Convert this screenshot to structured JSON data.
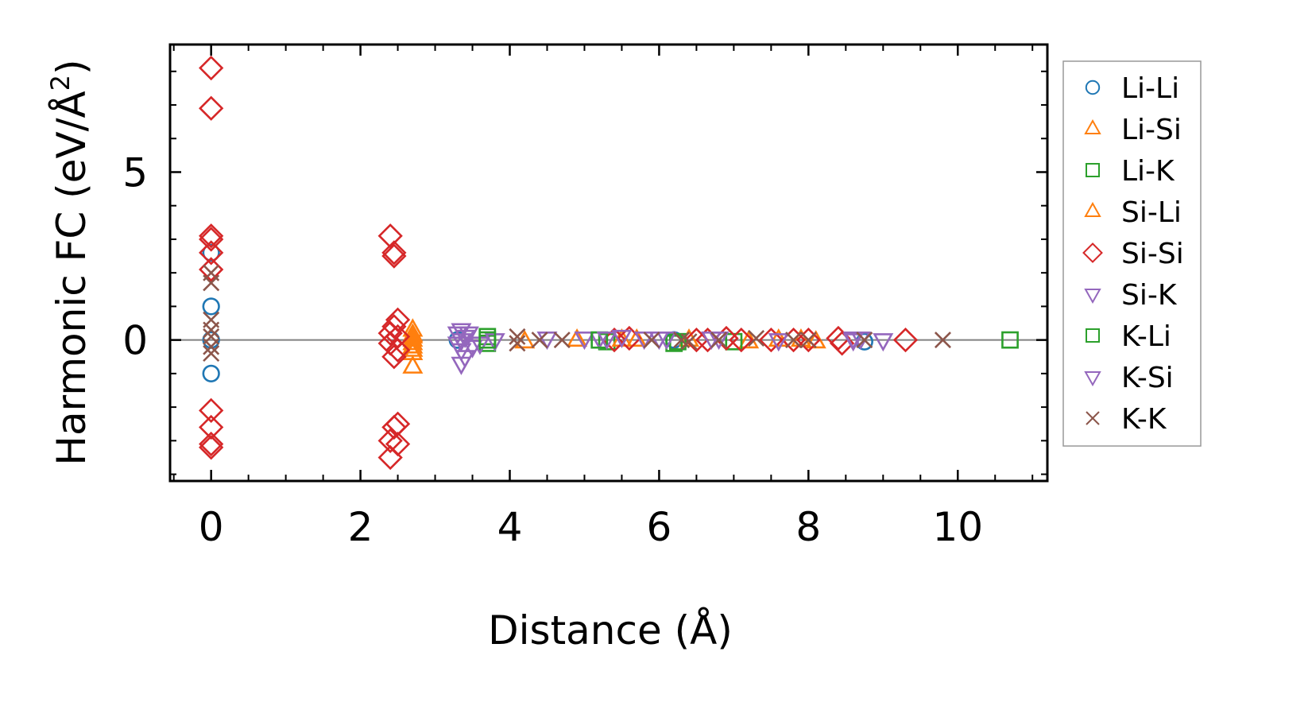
{
  "chart_data": {
    "type": "scatter",
    "xlabel": "Distance (Å)",
    "ylabel": "Harmonic FC (eV/Å²)",
    "ylabel_main": "Harmonic FC (eV/Å",
    "ylabel_sup": "2",
    "ylabel_close": ")",
    "xlim": [
      -0.55,
      11.2
    ],
    "ylim": [
      -4.2,
      8.8
    ],
    "x_ticks": [
      0,
      2,
      4,
      6,
      8,
      10
    ],
    "x_tick_labels": [
      "0",
      "2",
      "4",
      "6",
      "8",
      "10"
    ],
    "y_ticks": [
      0,
      5
    ],
    "y_tick_labels": [
      "0",
      "5"
    ],
    "zero_line": true,
    "grid": false,
    "legend_position": "outside-right",
    "series": [
      {
        "name": "Li-Li",
        "marker": "circle",
        "color": "#1f77b4",
        "points": [
          [
            0,
            2.6
          ],
          [
            0,
            1.0
          ],
          [
            0,
            -1.0
          ],
          [
            0,
            0.0
          ],
          [
            6.2,
            0.0
          ],
          [
            8.75,
            -0.05
          ],
          [
            3.3,
            0.0
          ]
        ]
      },
      {
        "name": "Li-Si",
        "marker": "triangle-up",
        "color": "#ff7f0e",
        "points": [
          [
            2.7,
            0.3
          ],
          [
            2.7,
            0.15
          ],
          [
            2.7,
            0.0
          ],
          [
            2.7,
            -0.2
          ],
          [
            2.7,
            -0.4
          ],
          [
            2.7,
            -0.8
          ],
          [
            4.2,
            -0.05
          ],
          [
            4.9,
            0.0
          ],
          [
            5.7,
            0.0
          ],
          [
            6.4,
            0.0
          ],
          [
            7.2,
            -0.05
          ],
          [
            7.9,
            0.0
          ],
          [
            8.1,
            -0.05
          ]
        ]
      },
      {
        "name": "Li-K",
        "marker": "square",
        "color": "#2ca02c",
        "points": [
          [
            3.7,
            0.1
          ],
          [
            3.7,
            -0.1
          ],
          [
            5.3,
            -0.05
          ],
          [
            6.2,
            -0.1
          ],
          [
            7.0,
            -0.05
          ],
          [
            10.7,
            0.0
          ]
        ]
      },
      {
        "name": "Si-Li",
        "marker": "triangle-up",
        "color": "#ff7f0e",
        "points": [
          [
            2.7,
            0.1
          ],
          [
            2.7,
            -0.1
          ],
          [
            2.7,
            -0.3
          ],
          [
            5.5,
            0.0
          ],
          [
            7.6,
            0.0
          ]
        ]
      },
      {
        "name": "Si-Si",
        "marker": "diamond",
        "color": "#d62728",
        "points": [
          [
            0,
            8.1
          ],
          [
            0,
            6.9
          ],
          [
            0,
            3.1
          ],
          [
            0,
            3.0
          ],
          [
            0,
            2.6
          ],
          [
            0,
            2.1
          ],
          [
            0,
            -2.1
          ],
          [
            0,
            -2.6
          ],
          [
            0,
            -3.1
          ],
          [
            0,
            -3.2
          ],
          [
            2.4,
            3.1
          ],
          [
            2.45,
            2.6
          ],
          [
            2.45,
            2.5
          ],
          [
            2.5,
            0.6
          ],
          [
            2.45,
            0.4
          ],
          [
            2.4,
            0.2
          ],
          [
            2.5,
            0.1
          ],
          [
            2.4,
            -0.1
          ],
          [
            2.5,
            -0.3
          ],
          [
            2.45,
            -0.5
          ],
          [
            2.5,
            -2.5
          ],
          [
            2.45,
            -2.6
          ],
          [
            2.4,
            -3.0
          ],
          [
            2.5,
            -3.1
          ],
          [
            2.4,
            -3.5
          ],
          [
            5.4,
            0.0
          ],
          [
            5.6,
            0.05
          ],
          [
            6.5,
            0.0
          ],
          [
            6.65,
            0.0
          ],
          [
            6.9,
            0.05
          ],
          [
            7.1,
            0.0
          ],
          [
            7.5,
            0.0
          ],
          [
            7.8,
            0.0
          ],
          [
            8.0,
            0.0
          ],
          [
            8.4,
            0.05
          ],
          [
            8.45,
            -0.1
          ],
          [
            9.3,
            0.0
          ]
        ]
      },
      {
        "name": "Si-K",
        "marker": "triangle-down",
        "color": "#9467bd",
        "points": [
          [
            3.35,
            0.3
          ],
          [
            3.35,
            0.0
          ],
          [
            3.35,
            -0.3
          ],
          [
            3.35,
            -0.7
          ],
          [
            3.4,
            -0.5
          ],
          [
            3.45,
            0.2
          ],
          [
            3.5,
            -0.2
          ],
          [
            3.6,
            -0.1
          ],
          [
            3.8,
            0.0
          ],
          [
            5.0,
            0.05
          ],
          [
            5.2,
            0.05
          ],
          [
            5.5,
            0.1
          ],
          [
            6.0,
            0.05
          ],
          [
            6.8,
            0.05
          ],
          [
            7.6,
            0.0
          ],
          [
            8.6,
            0.0
          ],
          [
            8.7,
            0.05
          ]
        ]
      },
      {
        "name": "K-Li",
        "marker": "square",
        "color": "#2ca02c",
        "points": [
          [
            3.7,
            0.0
          ],
          [
            5.2,
            0.0
          ],
          [
            6.25,
            -0.05
          ]
        ]
      },
      {
        "name": "K-Si",
        "marker": "triangle-down",
        "color": "#9467bd",
        "points": [
          [
            3.3,
            0.2
          ],
          [
            3.3,
            -0.1
          ],
          [
            3.4,
            0.1
          ],
          [
            4.5,
            0.05
          ],
          [
            5.3,
            0.05
          ],
          [
            5.8,
            0.05
          ],
          [
            6.1,
            0.05
          ],
          [
            6.7,
            0.05
          ],
          [
            8.6,
            0.05
          ],
          [
            9.0,
            0.0
          ]
        ]
      },
      {
        "name": "K-K",
        "marker": "x",
        "color": "#8c564b",
        "points": [
          [
            0,
            2.0
          ],
          [
            0,
            1.7
          ],
          [
            0,
            0.6
          ],
          [
            0,
            0.3
          ],
          [
            0,
            0.1
          ],
          [
            0,
            -0.2
          ],
          [
            0,
            -0.4
          ],
          [
            4.1,
            0.1
          ],
          [
            4.1,
            -0.1
          ],
          [
            4.4,
            0.0
          ],
          [
            4.7,
            0.0
          ],
          [
            5.9,
            0.0
          ],
          [
            6.3,
            0.0
          ],
          [
            6.4,
            -0.05
          ],
          [
            6.8,
            0.0
          ],
          [
            7.3,
            0.05
          ],
          [
            7.8,
            0.0
          ],
          [
            8.0,
            0.0
          ],
          [
            8.75,
            0.0
          ],
          [
            9.8,
            0.0
          ]
        ]
      }
    ]
  }
}
